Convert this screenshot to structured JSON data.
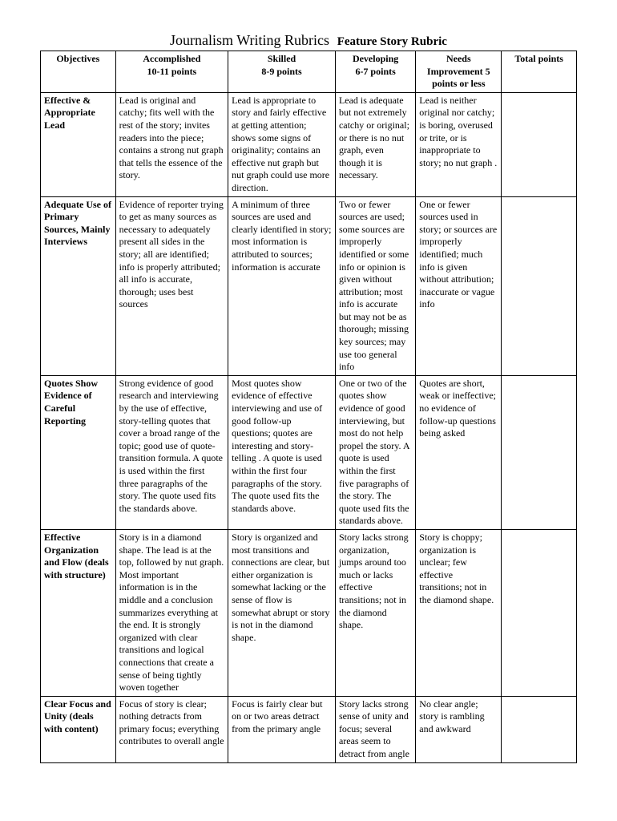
{
  "title_main": "Journalism Writing Rubrics",
  "title_sub": "Feature Story Rubric",
  "headers": {
    "objectives": "Objectives",
    "accomplished": "Accomplished",
    "accomplished_pts": "10-11 points",
    "skilled": "Skilled",
    "skilled_pts": "8-9 points",
    "developing": "Developing",
    "developing_pts": "6-7 points",
    "needs": "Needs",
    "needs_line2": "Improvement 5",
    "needs_line3": "points or less",
    "total": "Total points"
  },
  "rows": [
    {
      "objective": "Effective & Appropriate Lead",
      "accomplished": "Lead is original and catchy; fits well with the rest of the story; invites readers into the piece; contains a strong nut graph that tells the essence of the story.",
      "skilled": "Lead is appropriate to story and fairly effective at getting attention; shows some signs of originality; contains an effective nut graph but nut graph could use more direction.",
      "developing": "Lead is adequate but not extremely catchy or original; or there is no nut graph, even though it is necessary.",
      "needs": "Lead is neither original nor catchy; is boring, overused or trite, or is inappropriate to story; no nut graph ."
    },
    {
      "objective": "Adequate Use of Primary Sources, Mainly Interviews",
      "accomplished": "Evidence of reporter trying to get as many sources as necessary to adequately present all sides in the story; all are identified; info is properly attributed; all info is accurate, thorough; uses best sources",
      "skilled": "A minimum of three sources are used and clearly identified in story; most information is attributed to sources; information is accurate",
      "developing": "Two or fewer sources are used; some sources are improperly identified or some info or opinion is given without attribution; most info is accurate but may not be as thorough; missing key sources; may use too general info",
      "needs": "One or fewer sources used in story; or sources are improperly identified; much info is given without attribution; inaccurate or vague info"
    },
    {
      "objective": "Quotes Show Evidence of Careful Reporting",
      "accomplished": "Strong evidence of good research and interviewing by the use of effective, story-telling quotes that cover a broad range of the topic; good use of quote-transition formula.  A quote is used within the first three paragraphs of the story.  The quote used fits the standards above.",
      "skilled": "Most quotes show evidence of effective interviewing and use of good follow-up questions; quotes are interesting and story-telling .  A quote is used within the first four paragraphs of the story.  The quote used fits the standards above.",
      "developing": "One or two of the quotes show evidence of good interviewing, but most do not help propel the story. A quote is used within the first five paragraphs of the story.  The quote used fits the standards above.",
      "needs": "Quotes are short, weak or ineffective; no evidence of follow-up questions being asked"
    },
    {
      "objective": "Effective Organization and Flow (deals with structure)",
      "accomplished": "Story is in a diamond shape.  The lead is at the top, followed by nut graph.  Most important information is in the middle and a conclusion summarizes everything at the end. It is strongly organized with clear transitions and logical connections that create a sense of being tightly woven together",
      "skilled": "Story is organized and most transitions and connections are clear, but either organization is somewhat lacking or the sense of flow is somewhat abrupt or story is not in the diamond shape.",
      "developing": "Story lacks strong organization, jumps around too much or lacks effective transitions; not in the diamond shape.",
      "needs": "Story is choppy; organization is unclear; few effective transitions; not in the diamond shape."
    },
    {
      "objective": "Clear Focus and Unity (deals with content)",
      "accomplished": "Focus of story is clear; nothing detracts from primary focus; everything contributes to overall angle",
      "skilled": "Focus is fairly clear but on or two areas detract from the primary angle",
      "developing": "Story lacks strong sense of unity and focus; several areas seem to detract from angle",
      "needs": "No clear angle; story is rambling and awkward"
    }
  ]
}
